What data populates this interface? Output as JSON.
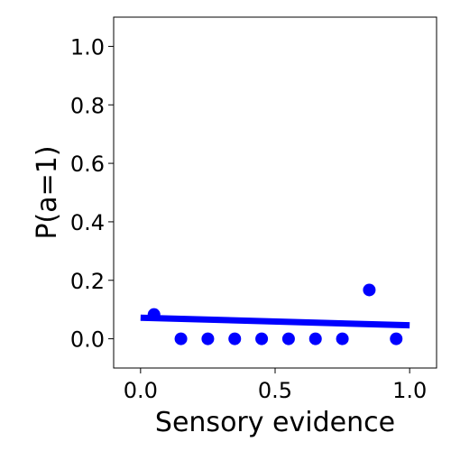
{
  "chart_data": {
    "type": "scatter",
    "title": "",
    "xlabel": "Sensory evidence",
    "ylabel": "P(a=1)",
    "xlim": [
      -0.1,
      1.1
    ],
    "ylim": [
      -0.1,
      1.1
    ],
    "xticks": [
      0.0,
      0.5,
      1.0
    ],
    "xtick_labels": [
      "0.0",
      "0.5",
      "1.0"
    ],
    "yticks": [
      0.0,
      0.2,
      0.4,
      0.6,
      0.8,
      1.0
    ],
    "ytick_labels": [
      "0.0",
      "0.2",
      "0.4",
      "0.6",
      "0.8",
      "1.0"
    ],
    "grid": false,
    "color": "#0000ff",
    "points": {
      "x": [
        0.05,
        0.15,
        0.25,
        0.35,
        0.45,
        0.55,
        0.65,
        0.75,
        0.85,
        0.95
      ],
      "y": [
        0.083,
        0.0,
        0.0,
        0.0,
        0.0,
        0.0,
        0.0,
        0.0,
        0.167,
        0.0
      ]
    },
    "fit_line": {
      "x": [
        0.0,
        1.0
      ],
      "y": [
        0.072,
        0.046
      ]
    }
  }
}
